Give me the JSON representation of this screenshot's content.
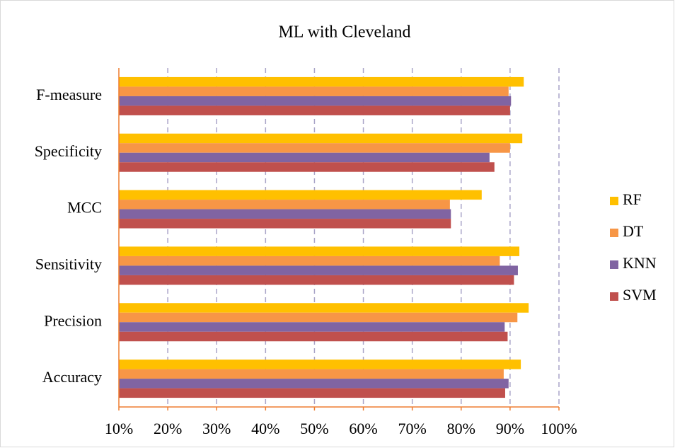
{
  "chart_data": {
    "type": "bar",
    "orientation": "horizontal",
    "title": "ML with Cleveland",
    "categories": [
      "F-measure",
      "Specificity",
      "MCC",
      "Sensitivity",
      "Precision",
      "Accuracy"
    ],
    "series": [
      {
        "name": "RF",
        "color": "#FFC000",
        "values": [
          92.8,
          92.5,
          84.2,
          91.9,
          93.8,
          92.2
        ]
      },
      {
        "name": "DT",
        "color": "#F79646",
        "values": [
          89.7,
          90.0,
          77.7,
          87.9,
          91.5,
          88.7
        ]
      },
      {
        "name": "KNN",
        "color": "#8064A2",
        "values": [
          90.2,
          85.8,
          77.9,
          91.6,
          88.9,
          89.7
        ]
      },
      {
        "name": "SVM",
        "color": "#C0504D",
        "values": [
          90.0,
          86.8,
          77.9,
          90.8,
          89.5,
          89.0
        ]
      }
    ],
    "xlim": [
      10,
      100
    ],
    "xticks": [
      {
        "value": 10,
        "label": "10%"
      },
      {
        "value": 20,
        "label": "20%"
      },
      {
        "value": 30,
        "label": "30%"
      },
      {
        "value": 40,
        "label": "40%"
      },
      {
        "value": 50,
        "label": "50%"
      },
      {
        "value": 60,
        "label": "60%"
      },
      {
        "value": 70,
        "label": "70%"
      },
      {
        "value": 80,
        "label": "80%"
      },
      {
        "value": 90,
        "label": "90%"
      },
      {
        "value": 100,
        "label": "100%"
      }
    ],
    "grid": true,
    "legend": "right"
  }
}
